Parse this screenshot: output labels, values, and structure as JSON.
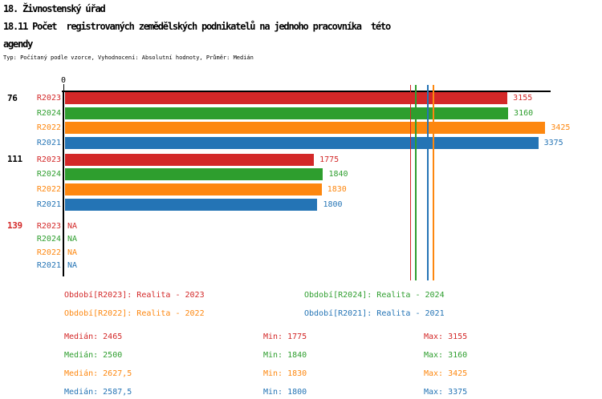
{
  "header": {
    "title": "18. Živnostenský úřad",
    "subtitle_line1": "18.11 Počet  registrovaných zemědělských podnikatelů na jednoho pracovníka  této",
    "subtitle_line2": "agendy",
    "meta": "Typ: Počítaný podle vzorce, Vyhodnocení: Absolutní hodnoty, Průměr: Medián"
  },
  "colors": {
    "series": {
      "R2023": "#d32828",
      "R2024": "#2e9e2e",
      "R2022": "#fd870f",
      "R2021": "#2474b5"
    },
    "axis": "#000000",
    "group_label_default": "#000000",
    "group_label_na": "#d32828"
  },
  "chart_data": {
    "type": "bar",
    "orientation": "horizontal-grouped",
    "title": "18.11 Počet registrovaných zemědělských podnikatelů na jednoho pracovníka této agendy",
    "x_axis": {
      "origin_tick_label": "0",
      "min": 0,
      "max": 3455,
      "gridlines": false
    },
    "na_text": "NA",
    "series_order": [
      "R2023",
      "R2024",
      "R2022",
      "R2021"
    ],
    "groups": [
      {
        "label": "76",
        "label_color": "#000000",
        "values": [
          3155,
          3160,
          3425,
          3375
        ]
      },
      {
        "label": "111",
        "label_color": "#000000",
        "values": [
          1775,
          1840,
          1830,
          1800
        ]
      },
      {
        "label": "139",
        "label_color": "#d32828",
        "values": [
          "NA",
          "NA",
          "NA",
          "NA"
        ]
      }
    ],
    "median_lines": {
      "R2023": 2465,
      "R2024": 2500,
      "R2022": 2627.5,
      "R2021": 2587.5
    }
  },
  "legend_items": [
    {
      "series": "R2023",
      "label": "Období[R2023]: Realita - 2023"
    },
    {
      "series": "R2024",
      "label": "Období[R2024]: Realita - 2024"
    },
    {
      "series": "R2022",
      "label": "Období[R2022]: Realita - 2022"
    },
    {
      "series": "R2021",
      "label": "Období[R2021]: Realita - 2021"
    }
  ],
  "stats_rows": [
    {
      "series": "R2023",
      "median": "Medián: 2465",
      "min": "Min: 1775",
      "max": "Max: 3155"
    },
    {
      "series": "R2024",
      "median": "Medián: 2500",
      "min": "Min: 1840",
      "max": "Max: 3160"
    },
    {
      "series": "R2022",
      "median": "Medián: 2627,5",
      "min": "Min: 1830",
      "max": "Max: 3425"
    },
    {
      "series": "R2021",
      "median": "Medián: 2587,5",
      "min": "Min: 1800",
      "max": "Max: 3375"
    }
  ]
}
